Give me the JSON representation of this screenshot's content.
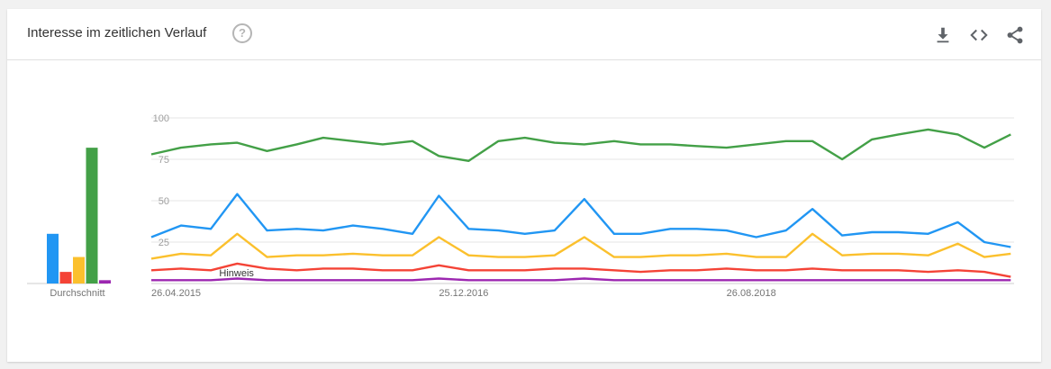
{
  "header": {
    "title": "Interesse im zeitlichen Verlauf",
    "help_symbol": "?",
    "icons": [
      "help-icon",
      "download-icon",
      "embed-icon",
      "share-icon"
    ]
  },
  "average": {
    "label": "Durchschnitt",
    "values": [
      30,
      7,
      16,
      82,
      2
    ],
    "colors": [
      "#2196f3",
      "#f44336",
      "#fbc02d",
      "#43a047",
      "#9c27b0"
    ]
  },
  "annotation": {
    "label": "Hinweis",
    "date": "2015-10-25"
  },
  "chart_data": {
    "type": "line",
    "title": "Interesse im zeitlichen Verlauf",
    "xlabel": "",
    "ylabel": "",
    "ylim": [
      0,
      100
    ],
    "yticks": [
      100,
      75,
      50,
      25
    ],
    "xticks": [
      "26.04.2015",
      "25.12.2016",
      "26.08.2018"
    ],
    "x_range": [
      "2015-04-26",
      "2020-04-26"
    ],
    "grid": true,
    "legend": "none",
    "x": [
      "2015-04-26",
      "2015-06-28",
      "2015-08-30",
      "2015-10-25",
      "2015-12-27",
      "2016-02-28",
      "2016-04-24",
      "2016-06-26",
      "2016-08-28",
      "2016-10-30",
      "2016-12-25",
      "2017-02-26",
      "2017-04-30",
      "2017-06-25",
      "2017-08-27",
      "2017-10-29",
      "2017-12-31",
      "2018-02-25",
      "2018-04-29",
      "2018-06-24",
      "2018-08-26",
      "2018-10-28",
      "2018-12-30",
      "2019-02-24",
      "2019-04-28",
      "2019-06-30",
      "2019-08-25",
      "2019-10-27",
      "2019-12-29",
      "2020-02-23",
      "2020-04-19"
    ],
    "series": [
      {
        "color": "#43a047",
        "values": [
          78,
          82,
          84,
          85,
          80,
          84,
          88,
          86,
          84,
          86,
          77,
          74,
          86,
          88,
          85,
          84,
          86,
          84,
          84,
          83,
          82,
          84,
          86,
          86,
          75,
          87,
          90,
          93,
          90,
          82,
          90
        ]
      },
      {
        "color": "#2196f3",
        "values": [
          28,
          35,
          33,
          54,
          32,
          33,
          32,
          35,
          33,
          30,
          53,
          33,
          32,
          30,
          32,
          51,
          30,
          30,
          33,
          33,
          32,
          28,
          32,
          45,
          29,
          31,
          31,
          30,
          37,
          25,
          22
        ]
      },
      {
        "color": "#fbc02d",
        "values": [
          15,
          18,
          17,
          30,
          16,
          17,
          17,
          18,
          17,
          17,
          28,
          17,
          16,
          16,
          17,
          28,
          16,
          16,
          17,
          17,
          18,
          16,
          16,
          30,
          17,
          18,
          18,
          17,
          24,
          16,
          18
        ]
      },
      {
        "color": "#f44336",
        "values": [
          8,
          9,
          8,
          12,
          9,
          8,
          9,
          9,
          8,
          8,
          11,
          8,
          8,
          8,
          9,
          9,
          8,
          7,
          8,
          8,
          9,
          8,
          8,
          9,
          8,
          8,
          8,
          7,
          8,
          7,
          4
        ]
      },
      {
        "color": "#9c27b0",
        "values": [
          2,
          2,
          2,
          3,
          2,
          2,
          2,
          2,
          2,
          2,
          3,
          2,
          2,
          2,
          2,
          3,
          2,
          2,
          2,
          2,
          2,
          2,
          2,
          2,
          2,
          2,
          2,
          2,
          2,
          2,
          2
        ]
      }
    ]
  }
}
